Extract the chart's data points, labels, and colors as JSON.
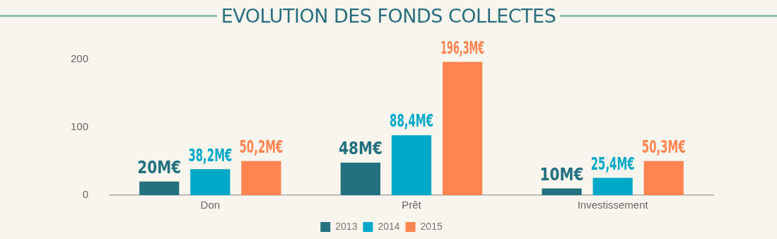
{
  "chart_data": {
    "type": "bar",
    "title": "EVOLUTION DES FONDS COLLECTES",
    "categories": [
      "Don",
      "Prêt",
      "Investissement"
    ],
    "series": [
      {
        "name": "2013",
        "color": "#24707f",
        "values": [
          20,
          48,
          10
        ],
        "value_labels": [
          "20M€",
          "48M€",
          "10M€"
        ]
      },
      {
        "name": "2014",
        "color": "#00a8c8",
        "values": [
          38.2,
          88.4,
          25.4
        ],
        "value_labels": [
          "38,2M€",
          "88,4M€",
          "25,4M€"
        ]
      },
      {
        "name": "2015",
        "color": "#ff8450",
        "values": [
          50.2,
          196.3,
          50.3
        ],
        "value_labels": [
          "50,2M€",
          "196,3M€",
          "50,3M€"
        ]
      }
    ],
    "ylim": [
      0,
      200
    ],
    "yticks": [
      0,
      100,
      200
    ],
    "grid": false,
    "legend": "bottom"
  }
}
